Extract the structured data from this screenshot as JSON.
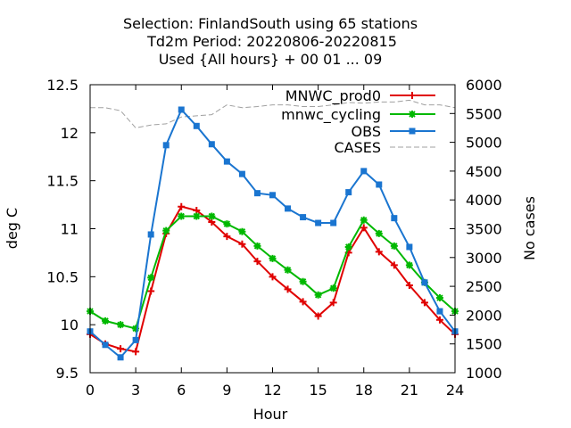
{
  "chart_data": {
    "type": "line",
    "title_lines": [
      "Selection: FinlandSouth using    65 stations",
      "Td2m   Period: 20220806-20220815",
      "Used {All hours} + 00 01 ... 09"
    ],
    "xlabel": "Hour",
    "ylabel": "deg C",
    "y2label": "No cases",
    "xlim": [
      0,
      24
    ],
    "ylim": [
      9.5,
      12.5
    ],
    "y2lim": [
      1000,
      6000
    ],
    "xticks": [
      0,
      3,
      6,
      9,
      12,
      15,
      18,
      21,
      24
    ],
    "yticks": [
      9.5,
      10,
      10.5,
      11,
      11.5,
      12,
      12.5
    ],
    "ytick_labels": [
      "9.5",
      "10",
      "10.5",
      "11",
      "11.5",
      "12",
      "12.5"
    ],
    "y2ticks": [
      1000,
      1500,
      2000,
      2500,
      3000,
      3500,
      4000,
      4500,
      5000,
      5500,
      6000
    ],
    "grid": false,
    "legend_position": "top-right",
    "x": [
      0,
      1,
      2,
      3,
      4,
      5,
      6,
      7,
      8,
      9,
      10,
      11,
      12,
      13,
      14,
      15,
      16,
      17,
      18,
      19,
      20,
      21,
      22,
      23,
      24
    ],
    "series": [
      {
        "name": "MNWC_prod0",
        "color": "#e00000",
        "marker": "plus",
        "axis": "left",
        "values": [
          9.9,
          9.8,
          9.75,
          9.72,
          10.35,
          10.95,
          11.23,
          11.19,
          11.07,
          10.92,
          10.84,
          10.66,
          10.5,
          10.37,
          10.24,
          10.09,
          10.23,
          10.75,
          11.01,
          10.76,
          10.62,
          10.41,
          10.23,
          10.05,
          9.9
        ]
      },
      {
        "name": "mnwc_cycling",
        "color": "#00b800",
        "marker": "star",
        "axis": "left",
        "values": [
          10.14,
          10.04,
          10.0,
          9.96,
          10.49,
          10.98,
          11.13,
          11.13,
          11.13,
          11.05,
          10.97,
          10.82,
          10.69,
          10.57,
          10.45,
          10.31,
          10.38,
          10.81,
          11.09,
          10.95,
          10.82,
          10.62,
          10.44,
          10.28,
          10.14
        ]
      },
      {
        "name": "OBS",
        "color": "#1a75d0",
        "marker": "box",
        "axis": "left",
        "values": [
          9.93,
          9.79,
          9.66,
          9.84,
          10.94,
          11.87,
          12.24,
          12.07,
          11.88,
          11.7,
          11.57,
          11.37,
          11.35,
          11.21,
          11.12,
          11.06,
          11.06,
          11.38,
          11.6,
          11.46,
          11.11,
          10.81,
          10.44,
          10.14,
          9.93
        ]
      },
      {
        "name": "CASES",
        "color": "#a0a0a0",
        "marker": "none",
        "dashed": true,
        "axis": "right",
        "values": [
          5600,
          5600,
          5550,
          5250,
          5300,
          5320,
          5440,
          5460,
          5480,
          5650,
          5600,
          5620,
          5650,
          5650,
          5620,
          5620,
          5650,
          5690,
          5680,
          5700,
          5700,
          5730,
          5650,
          5650,
          5600
        ]
      }
    ]
  }
}
